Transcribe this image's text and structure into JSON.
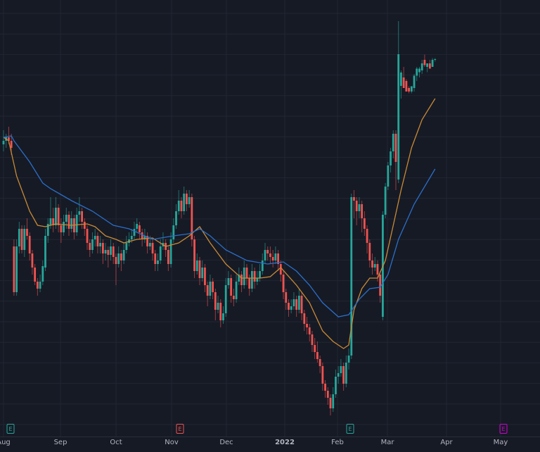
{
  "chart_data": {
    "type": "candlestick",
    "colors": {
      "background": "#161a25",
      "grid": "#222632",
      "up": "#26a69a",
      "down": "#ef5350",
      "ma_fast": "#c98a35",
      "ma_slow": "#2a6fc9",
      "axis_text": "#b2b5be"
    },
    "x_tick_labels": [
      "Aug",
      "Sep",
      "Oct",
      "Nov",
      "Dec",
      "2022",
      "Feb",
      "Mar",
      "Apr",
      "May"
    ],
    "ylim": [
      0,
      124
    ],
    "grid": true,
    "candles_ohlc": [
      [
        83,
        87,
        81,
        84
      ],
      [
        84,
        86,
        82,
        85
      ],
      [
        85,
        88,
        83,
        84
      ],
      [
        84,
        86,
        80,
        82
      ],
      [
        54,
        56,
        40,
        41
      ],
      [
        41,
        56,
        40,
        54
      ],
      [
        54,
        61,
        52,
        59
      ],
      [
        59,
        60,
        52,
        53
      ],
      [
        53,
        60,
        51,
        59
      ],
      [
        59,
        62,
        56,
        57
      ],
      [
        57,
        58,
        50,
        52
      ],
      [
        52,
        53,
        46,
        48
      ],
      [
        48,
        49,
        43,
        44
      ],
      [
        44,
        45,
        40,
        42
      ],
      [
        42,
        46,
        41,
        44
      ],
      [
        44,
        50,
        43,
        48.4
      ],
      [
        48,
        59,
        47,
        57
      ],
      [
        57,
        62,
        55,
        60.4
      ],
      [
        60,
        68,
        59,
        62
      ],
      [
        62,
        65,
        58,
        60
      ],
      [
        60,
        68,
        59,
        65
      ],
      [
        65,
        66,
        58,
        60
      ],
      [
        60,
        62,
        55,
        58
      ],
      [
        58,
        63,
        57,
        61
      ],
      [
        61,
        65,
        59,
        63
      ],
      [
        63,
        64,
        57,
        59
      ],
      [
        59,
        64,
        58,
        62
      ],
      [
        62,
        63,
        56,
        58
      ],
      [
        58,
        65,
        57,
        63
      ],
      [
        63,
        68,
        61,
        64
      ],
      [
        64,
        65,
        59,
        61
      ],
      [
        61,
        62,
        57,
        59
      ],
      [
        59,
        60,
        53,
        55
      ],
      [
        55,
        56,
        51,
        53
      ],
      [
        53,
        58,
        52,
        56
      ],
      [
        56,
        59,
        54,
        57
      ],
      [
        57,
        58,
        52,
        54
      ],
      [
        54,
        57,
        52,
        55
      ],
      [
        55,
        56,
        49,
        52
      ],
      [
        52,
        55,
        50,
        53
      ],
      [
        53,
        54,
        48,
        51.6
      ],
      [
        51.6,
        56,
        50,
        54
      ],
      [
        54,
        55,
        49,
        51
      ],
      [
        51,
        52,
        43,
        49
      ],
      [
        49,
        54,
        48,
        52
      ],
      [
        52,
        53,
        47,
        50
      ],
      [
        50,
        55,
        49,
        53
      ],
      [
        53,
        57,
        52,
        55
      ],
      [
        55,
        58,
        54,
        56
      ],
      [
        56,
        59,
        55,
        57
      ],
      [
        57,
        61,
        56,
        59
      ],
      [
        59,
        62,
        58,
        60.4
      ],
      [
        60,
        61,
        56,
        58
      ],
      [
        58,
        59,
        54,
        56
      ],
      [
        56,
        59,
        55,
        57
      ],
      [
        57,
        58,
        52,
        54
      ],
      [
        54,
        57,
        53,
        55
      ],
      [
        55,
        56,
        50,
        52
      ],
      [
        52,
        53,
        47,
        49
      ],
      [
        49,
        52,
        47,
        50
      ],
      [
        50,
        56,
        49,
        54
      ],
      [
        54,
        58,
        53,
        55
      ],
      [
        55,
        56,
        51,
        53
      ],
      [
        53,
        54,
        47,
        49
      ],
      [
        49,
        58,
        48,
        56
      ],
      [
        56,
        62,
        55,
        60
      ],
      [
        60,
        66,
        59,
        64
      ],
      [
        64,
        70,
        63,
        67
      ],
      [
        67,
        68,
        62,
        64
      ],
      [
        64,
        71,
        63,
        69
      ],
      [
        69,
        70,
        64,
        66
      ],
      [
        66,
        70,
        65,
        68
      ],
      [
        68,
        69,
        54,
        56
      ],
      [
        56,
        57,
        45,
        47
      ],
      [
        47,
        52,
        46,
        50
      ],
      [
        50,
        51,
        43,
        45
      ],
      [
        45,
        50,
        44,
        48
      ],
      [
        48,
        49,
        41,
        43
      ],
      [
        43,
        44,
        37,
        40
      ],
      [
        40,
        46,
        39,
        44
      ],
      [
        44,
        45,
        39,
        41
      ],
      [
        41,
        42,
        33,
        36
      ],
      [
        36,
        40,
        35,
        38
      ],
      [
        38,
        39,
        31,
        33
      ],
      [
        33,
        37,
        32,
        35
      ],
      [
        35,
        45,
        34,
        43
      ],
      [
        43,
        47,
        42,
        45
      ],
      [
        45,
        46,
        38,
        40
      ],
      [
        40,
        42,
        37,
        39
      ],
      [
        39,
        46,
        38,
        44
      ],
      [
        44,
        48,
        43,
        46
      ],
      [
        46,
        47,
        41,
        43
      ],
      [
        43,
        50,
        42,
        48
      ],
      [
        48,
        49,
        43,
        45
      ],
      [
        45,
        46,
        40,
        42
      ],
      [
        42,
        49,
        41,
        47
      ],
      [
        47,
        48,
        42,
        44
      ],
      [
        44,
        47,
        43,
        45
      ],
      [
        45,
        49,
        44,
        47
      ],
      [
        47,
        52,
        46,
        50
      ],
      [
        50,
        55,
        49,
        53
      ],
      [
        53,
        54,
        50,
        52
      ],
      [
        52,
        54,
        49,
        51
      ],
      [
        51,
        53,
        48,
        50
      ],
      [
        50,
        54,
        49,
        52
      ],
      [
        52,
        53,
        47,
        49
      ],
      [
        49,
        50,
        44,
        46
      ],
      [
        46,
        47,
        39,
        41
      ],
      [
        41,
        42,
        36,
        38
      ],
      [
        38,
        39,
        34,
        36
      ],
      [
        36,
        39,
        35,
        37
      ],
      [
        37,
        41,
        36,
        39
      ],
      [
        39,
        40,
        34,
        36
      ],
      [
        36,
        42,
        35,
        40
      ],
      [
        40,
        41,
        33,
        35
      ],
      [
        35,
        36,
        30,
        32
      ],
      [
        32,
        34,
        29,
        31
      ],
      [
        31,
        32,
        27,
        29
      ],
      [
        29,
        30,
        24,
        26
      ],
      [
        26,
        28,
        22,
        24
      ],
      [
        24,
        27,
        21,
        22
      ],
      [
        22,
        23,
        18,
        20
      ],
      [
        20,
        21,
        13,
        15
      ],
      [
        15,
        16,
        11,
        13
      ],
      [
        13,
        14,
        9,
        11
      ],
      [
        11,
        12,
        6,
        8
      ],
      [
        8,
        14,
        7,
        12
      ],
      [
        12,
        19,
        11,
        17
      ],
      [
        17,
        20,
        15,
        18
      ],
      [
        18,
        22,
        17,
        20
      ],
      [
        20,
        21,
        13,
        15
      ],
      [
        15,
        23,
        14,
        21
      ],
      [
        21,
        25,
        19,
        23
      ],
      [
        23,
        69,
        22,
        68
      ],
      [
        68,
        70,
        62,
        67
      ],
      [
        67,
        68,
        60,
        64
      ],
      [
        64,
        68,
        62,
        66
      ],
      [
        66,
        67,
        58,
        62
      ],
      [
        62,
        64,
        57,
        59
      ],
      [
        59,
        60,
        52,
        55
      ],
      [
        55,
        56,
        48,
        50
      ],
      [
        50,
        52,
        46,
        48
      ],
      [
        48,
        51,
        47,
        49
      ],
      [
        49,
        50,
        44,
        46
      ],
      [
        46,
        47,
        38,
        40
      ],
      [
        34,
        64,
        33,
        63
      ],
      [
        63,
        72,
        62,
        71
      ],
      [
        71,
        78,
        70,
        77
      ],
      [
        77,
        82,
        75,
        81
      ],
      [
        81,
        87,
        79,
        86
      ],
      [
        86,
        87,
        70,
        78
      ],
      [
        73,
        118,
        72,
        108.6
      ],
      [
        99.6,
        104,
        96,
        103.4
      ],
      [
        102,
        105,
        99,
        99
      ],
      [
        101,
        101.5,
        98,
        98
      ],
      [
        99,
        99.5,
        97.5,
        98
      ],
      [
        98,
        99.5,
        97.5,
        99.5
      ],
      [
        99,
        103,
        98,
        102.5
      ],
      [
        102.5,
        105,
        101,
        104.5
      ],
      [
        103.5,
        105,
        102,
        104.5
      ],
      [
        104,
        107,
        103,
        106
      ],
      [
        107,
        108.5,
        105,
        105.5
      ],
      [
        105,
        106,
        103.5,
        106
      ],
      [
        106,
        107,
        104.5,
        104.5
      ],
      [
        105,
        107.5,
        105,
        107
      ],
      [
        107,
        107.5,
        106.5,
        107.2
      ]
    ],
    "moving_averages": [
      {
        "role": "fast",
        "points": [
          [
            0,
            85
          ],
          [
            2,
            84
          ],
          [
            5,
            74
          ],
          [
            10,
            64
          ],
          [
            13,
            60
          ],
          [
            16,
            59.6
          ],
          [
            20,
            60.4
          ],
          [
            26,
            60
          ],
          [
            32,
            60.4
          ],
          [
            35,
            59.6
          ],
          [
            39,
            57
          ],
          [
            43,
            56
          ],
          [
            46,
            55
          ],
          [
            51,
            56
          ],
          [
            57,
            56.4
          ],
          [
            62,
            54
          ],
          [
            67,
            55
          ],
          [
            71,
            57
          ],
          [
            75,
            59.6
          ],
          [
            79,
            55
          ],
          [
            85,
            49
          ],
          [
            91,
            45
          ],
          [
            98,
            45
          ],
          [
            102,
            45.4
          ],
          [
            106,
            48
          ],
          [
            112,
            43
          ],
          [
            117,
            38
          ],
          [
            122,
            30
          ],
          [
            126,
            27
          ],
          [
            130,
            25
          ],
          [
            132,
            26
          ],
          [
            134,
            36
          ],
          [
            137,
            42
          ],
          [
            140,
            45
          ],
          [
            143,
            45
          ],
          [
            146,
            50
          ],
          [
            149,
            60
          ],
          [
            152,
            70
          ],
          [
            156,
            82
          ],
          [
            160,
            90
          ],
          [
            165,
            96
          ]
        ]
      },
      {
        "role": "slow",
        "points": [
          [
            0,
            85
          ],
          [
            3,
            85.4
          ],
          [
            4,
            84
          ],
          [
            10,
            78
          ],
          [
            15,
            72
          ],
          [
            18,
            70.4
          ],
          [
            26,
            67
          ],
          [
            34,
            64
          ],
          [
            42,
            60
          ],
          [
            48,
            59
          ],
          [
            57,
            56
          ],
          [
            65,
            57
          ],
          [
            71,
            57.6
          ],
          [
            75,
            59
          ],
          [
            79,
            57
          ],
          [
            85,
            53
          ],
          [
            93,
            50
          ],
          [
            101,
            49
          ],
          [
            107,
            49.6
          ],
          [
            112,
            47
          ],
          [
            117,
            43
          ],
          [
            122,
            38
          ],
          [
            128,
            34
          ],
          [
            132,
            34.6
          ],
          [
            136,
            39
          ],
          [
            140,
            42
          ],
          [
            144,
            42.4
          ],
          [
            147,
            46
          ],
          [
            151,
            56
          ],
          [
            157,
            66
          ],
          [
            165,
            76
          ]
        ]
      }
    ],
    "events": [
      {
        "label": "E",
        "color": "#26a69a"
      },
      {
        "label": "E",
        "color": "#ef5350"
      },
      {
        "label": "E",
        "color": "#26a69a"
      },
      {
        "label": "E",
        "color": "#d000d0"
      }
    ]
  }
}
